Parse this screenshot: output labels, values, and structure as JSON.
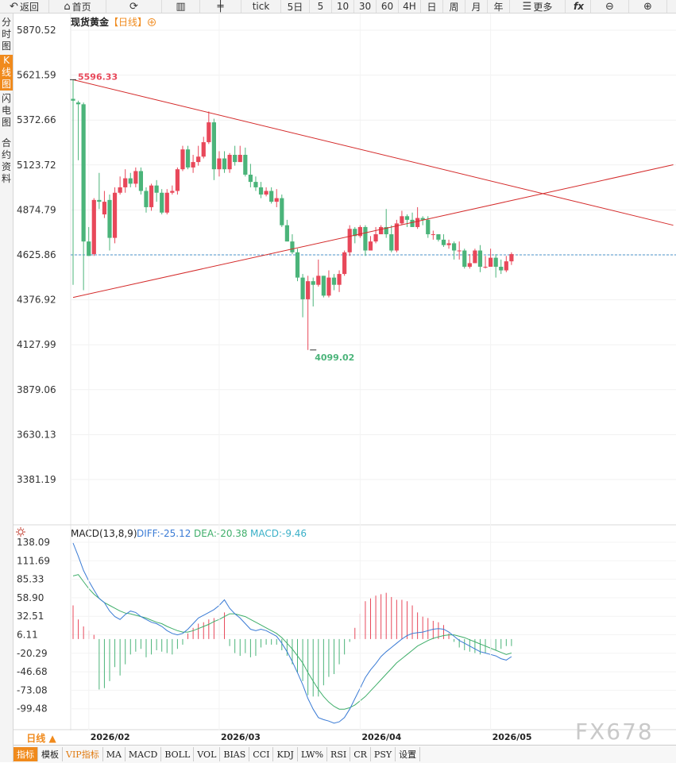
{
  "toolbar": [
    {
      "name": "back-button",
      "icon": "back-arrow-icon",
      "label": "返回",
      "w": 62
    },
    {
      "name": "home-button",
      "icon": "home-icon",
      "label": "首页",
      "w": 72
    },
    {
      "name": "refresh-button",
      "icon": "refresh-icon",
      "label": "",
      "w": 70
    },
    {
      "name": "chart-type-button",
      "icon": "bar-chart-icon",
      "label": "",
      "w": 48
    },
    {
      "name": "candle-type-button",
      "icon": "candlestick-icon",
      "label": "",
      "w": 52
    },
    {
      "name": "period-tick",
      "icon": "",
      "label": "tick",
      "w": 50
    },
    {
      "name": "period-5day",
      "icon": "",
      "label": "5日",
      "w": 36
    },
    {
      "name": "period-5",
      "icon": "",
      "label": "5",
      "w": 28
    },
    {
      "name": "period-10",
      "icon": "",
      "label": "10",
      "w": 28
    },
    {
      "name": "period-30",
      "icon": "",
      "label": "30",
      "w": 28
    },
    {
      "name": "period-60",
      "icon": "",
      "label": "60",
      "w": 28
    },
    {
      "name": "period-4h",
      "icon": "",
      "label": "4H",
      "w": 28
    },
    {
      "name": "period-day",
      "icon": "",
      "label": "日",
      "w": 28
    },
    {
      "name": "period-week",
      "icon": "",
      "label": "周",
      "w": 28
    },
    {
      "name": "period-month",
      "icon": "",
      "label": "月",
      "w": 28
    },
    {
      "name": "period-year",
      "icon": "",
      "label": "年",
      "w": 28
    },
    {
      "name": "more-button",
      "icon": "menu-icon",
      "label": "更多",
      "w": 70
    },
    {
      "name": "formula-button",
      "icon": "fx-icon",
      "label": "fx",
      "w": 32
    },
    {
      "name": "zoom-out-button",
      "icon": "zoom-out-icon",
      "label": "",
      "w": 48
    },
    {
      "name": "zoom-in-button",
      "icon": "zoom-in-icon",
      "label": "",
      "w": 48
    }
  ],
  "sidebar": [
    {
      "label": "分时图",
      "active": false
    },
    {
      "label": "K线图",
      "active": true
    },
    {
      "label": "闪电图",
      "active": false
    },
    {
      "label": "合约资料",
      "active": false
    }
  ],
  "header": {
    "symbol": "现货黄金",
    "period": "【日线】",
    "add_icon": "plus-circle-icon"
  },
  "colors": {
    "up": "#e8485a",
    "down": "#4bb47a",
    "trend": "#d42a2a",
    "dash": "#4a90c8",
    "diff": "#3a7bd5",
    "dea": "#3fae6a"
  },
  "chart_data": {
    "type": "candlestick",
    "title": "现货黄金【日线】",
    "y_ticks": [
      "5870.52",
      "5621.59",
      "5372.66",
      "5123.72",
      "4874.79",
      "4625.86",
      "4376.92",
      "4127.99",
      "3879.06",
      "3630.13",
      "3381.19"
    ],
    "ylim": [
      3381.19,
      5870.52
    ],
    "x_labels": [
      {
        "index": 3,
        "label": "2026/02"
      },
      {
        "index": 28,
        "label": "2026/03"
      },
      {
        "index": 55,
        "label": "2026/04"
      },
      {
        "index": 80,
        "label": "2026/05"
      }
    ],
    "annotations": [
      {
        "text": "5596.33",
        "index": 0,
        "value": 5596.33,
        "kind": "high"
      },
      {
        "text": "4099.02",
        "index": 46,
        "value": 4099.02,
        "kind": "low"
      }
    ],
    "current_price_line": 4625.86,
    "trend_lines": [
      {
        "from": [
          0,
          5596.33
        ],
        "to": [
          115,
          4790
        ]
      },
      {
        "from": [
          0,
          4390
        ],
        "to": [
          115,
          5125
        ]
      }
    ],
    "candles": [
      [
        5490,
        5480,
        5596.33,
        4460
      ],
      [
        5470,
        5460,
        5480,
        5150
      ],
      [
        5460,
        4700,
        5470,
        4430
      ],
      [
        4700,
        4620,
        4780,
        4620
      ],
      [
        4630,
        4930,
        4940,
        4620
      ],
      [
        4930,
        4920,
        5080,
        4880
      ],
      [
        4850,
        4920,
        4980,
        4830
      ],
      [
        4930,
        4720,
        4960,
        4650
      ],
      [
        4720,
        4970,
        5000,
        4690
      ],
      [
        4970,
        5000,
        5060,
        4960
      ],
      [
        5000,
        5050,
        5100,
        4970
      ],
      [
        5050,
        5020,
        5080,
        5000
      ],
      [
        5020,
        5090,
        5110,
        5000
      ],
      [
        5090,
        4980,
        5110,
        4960
      ],
      [
        4980,
        4890,
        5000,
        4860
      ],
      [
        4890,
        5010,
        5020,
        4870
      ],
      [
        5010,
        4970,
        5040,
        4920
      ],
      [
        4970,
        4860,
        4990,
        4850
      ],
      [
        4860,
        4970,
        4990,
        4850
      ],
      [
        4970,
        4980,
        5010,
        4960
      ],
      [
        4980,
        5100,
        5110,
        4960
      ],
      [
        5100,
        5210,
        5230,
        5090
      ],
      [
        5210,
        5110,
        5230,
        5100
      ],
      [
        5110,
        5140,
        5180,
        5080
      ],
      [
        5140,
        5170,
        5230,
        5120
      ],
      [
        5170,
        5250,
        5280,
        5160
      ],
      [
        5250,
        5360,
        5420,
        5240
      ],
      [
        5360,
        5100,
        5380,
        5040
      ],
      [
        5100,
        5160,
        5200,
        5060
      ],
      [
        5160,
        5100,
        5200,
        5080
      ],
      [
        5100,
        5180,
        5190,
        5080
      ],
      [
        5180,
        5140,
        5230,
        5120
      ],
      [
        5140,
        5180,
        5230,
        5140
      ],
      [
        5180,
        5070,
        5220,
        5060
      ],
      [
        5070,
        5030,
        5130,
        5000
      ],
      [
        5030,
        5000,
        5060,
        4980
      ],
      [
        5000,
        4960,
        5030,
        4940
      ],
      [
        4960,
        4980,
        5000,
        4950
      ],
      [
        4980,
        4920,
        5000,
        4910
      ],
      [
        4920,
        4940,
        4990,
        4890
      ],
      [
        4940,
        4790,
        4960,
        4780
      ],
      [
        4790,
        4700,
        4820,
        4700
      ],
      [
        4700,
        4640,
        4740,
        4630
      ],
      [
        4640,
        4500,
        4660,
        4480
      ],
      [
        4500,
        4380,
        4520,
        4280
      ],
      [
        4380,
        4480,
        4510,
        4099.02
      ],
      [
        4480,
        4460,
        4500,
        4340
      ],
      [
        4460,
        4510,
        4600,
        4450
      ],
      [
        4510,
        4400,
        4510,
        4390
      ],
      [
        4400,
        4500,
        4540,
        4390
      ],
      [
        4500,
        4460,
        4520,
        4430
      ],
      [
        4460,
        4520,
        4540,
        4420
      ],
      [
        4520,
        4640,
        4650,
        4510
      ],
      [
        4640,
        4770,
        4790,
        4620
      ],
      [
        4770,
        4730,
        4780,
        4690
      ],
      [
        4730,
        4780,
        4790,
        4720
      ],
      [
        4780,
        4650,
        4790,
        4620
      ],
      [
        4650,
        4700,
        4730,
        4650
      ],
      [
        4700,
        4740,
        4780,
        4690
      ],
      [
        4740,
        4780,
        4790,
        4740
      ],
      [
        4780,
        4740,
        4880,
        4720
      ],
      [
        4740,
        4650,
        4790,
        4640
      ],
      [
        4650,
        4800,
        4820,
        4640
      ],
      [
        4800,
        4840,
        4870,
        4790
      ],
      [
        4840,
        4820,
        4850,
        4780
      ],
      [
        4820,
        4780,
        4860,
        4780
      ],
      [
        4780,
        4830,
        4890,
        4770
      ],
      [
        4830,
        4820,
        4840,
        4790
      ],
      [
        4820,
        4740,
        4840,
        4720
      ],
      [
        4740,
        4740,
        4760,
        4710
      ],
      [
        4740,
        4710,
        4740,
        4700
      ],
      [
        4710,
        4680,
        4740,
        4670
      ],
      [
        4680,
        4690,
        4710,
        4660
      ],
      [
        4690,
        4650,
        4700,
        4600
      ],
      [
        4650,
        4650,
        4700,
        4600
      ],
      [
        4650,
        4560,
        4660,
        4550
      ],
      [
        4560,
        4580,
        4630,
        4550
      ],
      [
        4580,
        4650,
        4660,
        4580
      ],
      [
        4650,
        4560,
        4680,
        4530
      ],
      [
        4560,
        4560,
        4620,
        4550
      ],
      [
        4560,
        4610,
        4660,
        4560
      ],
      [
        4610,
        4560,
        4630,
        4500
      ],
      [
        4560,
        4540,
        4600,
        4520
      ],
      [
        4540,
        4590,
        4620,
        4530
      ],
      [
        4590,
        4630,
        4640,
        4570
      ]
    ],
    "macd": {
      "label": "MACD(13,8,9)",
      "diff_label": "DIFF:-25.12",
      "dea_label": "DEA:-20.38",
      "macd_label": "MACD:-9.46",
      "y_ticks": [
        "138.09",
        "111.69",
        "85.33",
        "58.90",
        "32.51",
        "6.11",
        "-20.29",
        "-46.68",
        "-73.08",
        "-99.48"
      ],
      "ylim": [
        -125.87,
        138.09
      ],
      "diff": [
        137,
        118,
        98,
        83,
        70,
        58,
        52,
        40,
        32,
        28,
        35,
        40,
        38,
        32,
        28,
        24,
        22,
        18,
        12,
        8,
        6,
        8,
        14,
        22,
        30,
        34,
        38,
        42,
        48,
        56,
        44,
        36,
        30,
        22,
        14,
        12,
        14,
        12,
        8,
        4,
        -6,
        -18,
        -32,
        -48,
        -65,
        -85,
        -100,
        -112,
        -115,
        -117,
        -120,
        -118,
        -112,
        -100,
        -85,
        -70,
        -55,
        -44,
        -35,
        -25,
        -18,
        -12,
        -6,
        0,
        5,
        8,
        9,
        10,
        12,
        14,
        15,
        14,
        10,
        4,
        -2,
        -6,
        -10,
        -14,
        -18,
        -20,
        -22,
        -24,
        -28,
        -30,
        -25
      ],
      "dea": [
        90,
        92,
        82,
        72,
        64,
        58,
        52,
        48,
        44,
        40,
        37,
        36,
        34,
        32,
        30,
        27,
        24,
        22,
        18,
        15,
        12,
        10,
        10,
        12,
        15,
        18,
        21,
        25,
        28,
        32,
        36,
        36,
        34,
        32,
        28,
        24,
        20,
        16,
        12,
        8,
        2,
        -6,
        -14,
        -24,
        -34,
        -48,
        -60,
        -72,
        -82,
        -90,
        -96,
        -100,
        -100,
        -98,
        -94,
        -88,
        -82,
        -74,
        -66,
        -58,
        -50,
        -42,
        -34,
        -28,
        -22,
        -16,
        -10,
        -6,
        -2,
        1,
        3,
        5,
        6,
        6,
        4,
        2,
        -1,
        -4,
        -7,
        -10,
        -13,
        -16,
        -19,
        -22,
        -20
      ],
      "hist": [
        48,
        28,
        18,
        12,
        6,
        -72,
        -70,
        -60,
        -40,
        -52,
        -36,
        -22,
        -18,
        -14,
        -26,
        -22,
        -16,
        -18,
        -20,
        -22,
        -14,
        -8,
        8,
        16,
        22,
        24,
        28,
        30,
        32,
        38,
        -10,
        -20,
        -24,
        -20,
        -26,
        -24,
        -12,
        -8,
        -8,
        -8,
        -16,
        -24,
        -36,
        -48,
        -60,
        -80,
        -82,
        -82,
        -66,
        -54,
        -50,
        -36,
        -22,
        -4,
        16,
        36,
        54,
        58,
        62,
        64,
        66,
        60,
        56,
        56,
        54,
        48,
        38,
        32,
        30,
        26,
        24,
        20,
        8,
        -4,
        -12,
        -16,
        -18,
        -20,
        -22,
        -20,
        -18,
        -16,
        -14,
        -10,
        -10
      ]
    }
  },
  "indicator_button": "日线 ▲",
  "bottom_tabs": [
    {
      "label": "指标",
      "active": true,
      "vip": false
    },
    {
      "label": "模板",
      "active": false,
      "vip": false
    },
    {
      "label": "VIP指标",
      "active": false,
      "vip": true
    },
    {
      "label": "MA",
      "active": false,
      "vip": false
    },
    {
      "label": "MACD",
      "active": false,
      "vip": false
    },
    {
      "label": "BOLL",
      "active": false,
      "vip": false
    },
    {
      "label": "VOL",
      "active": false,
      "vip": false
    },
    {
      "label": "BIAS",
      "active": false,
      "vip": false
    },
    {
      "label": "CCI",
      "active": false,
      "vip": false
    },
    {
      "label": "KDJ",
      "active": false,
      "vip": false
    },
    {
      "label": "LW%",
      "active": false,
      "vip": false
    },
    {
      "label": "RSI",
      "active": false,
      "vip": false
    },
    {
      "label": "CR",
      "active": false,
      "vip": false
    },
    {
      "label": "PSY",
      "active": false,
      "vip": false
    },
    {
      "label": "设置",
      "active": false,
      "vip": false
    }
  ],
  "watermark": "FX678"
}
